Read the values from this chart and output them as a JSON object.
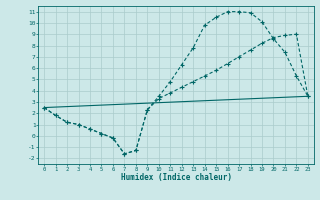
{
  "xlabel": "Humidex (Indice chaleur)",
  "bg_color": "#cce8e8",
  "grid_color": "#aacccc",
  "line_color": "#006666",
  "xlim": [
    -0.5,
    23.5
  ],
  "ylim": [
    -2.5,
    11.5
  ],
  "xticks": [
    0,
    1,
    2,
    3,
    4,
    5,
    6,
    7,
    8,
    9,
    10,
    11,
    12,
    13,
    14,
    15,
    16,
    17,
    18,
    19,
    20,
    21,
    22,
    23
  ],
  "yticks": [
    -2,
    -1,
    0,
    1,
    2,
    3,
    4,
    5,
    6,
    7,
    8,
    9,
    10,
    11
  ],
  "line1_x": [
    0,
    1,
    2,
    3,
    4,
    5,
    6,
    7,
    8,
    9,
    10,
    11,
    12,
    13,
    14,
    15,
    16,
    17,
    18,
    19,
    20,
    21,
    22,
    23
  ],
  "line1_y": [
    2.5,
    1.8,
    1.2,
    1.0,
    0.6,
    0.2,
    -0.2,
    -1.6,
    -1.3,
    2.3,
    3.5,
    4.8,
    6.3,
    7.8,
    9.8,
    10.5,
    11.0,
    11.0,
    10.9,
    10.1,
    8.6,
    7.4,
    5.3,
    3.5
  ],
  "line2_x": [
    0,
    1,
    2,
    3,
    4,
    5,
    6,
    7,
    8,
    9,
    10,
    11,
    12,
    13,
    14,
    15,
    16,
    17,
    18,
    19,
    20,
    21,
    22,
    23
  ],
  "line2_y": [
    2.5,
    1.8,
    1.2,
    1.0,
    0.6,
    0.2,
    -0.2,
    -1.6,
    -1.3,
    2.3,
    3.3,
    3.8,
    4.3,
    4.8,
    5.3,
    5.8,
    6.4,
    7.0,
    7.6,
    8.2,
    8.7,
    8.9,
    9.0,
    3.5
  ],
  "line3_x": [
    0,
    23
  ],
  "line3_y": [
    2.5,
    3.5
  ]
}
